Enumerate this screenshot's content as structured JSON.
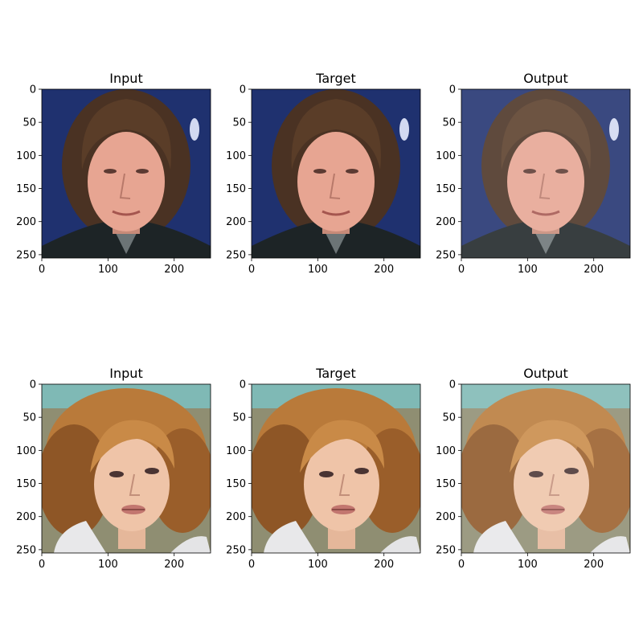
{
  "figure": {
    "panels": [
      {
        "title": "Input",
        "image": "face-portrait-man-brown-hair-dark-blue-background"
      },
      {
        "title": "Target",
        "image": "face-portrait-man-brown-hair-dark-blue-background"
      },
      {
        "title": "Output",
        "image": "face-portrait-man-brown-hair-dark-blue-background-reconstruction"
      },
      {
        "title": "Input",
        "image": "face-portrait-woman-blonde-hair-teal-background"
      },
      {
        "title": "Target",
        "image": "face-portrait-woman-blonde-hair-teal-background"
      },
      {
        "title": "Output",
        "image": "face-portrait-woman-blonde-hair-reconstruction"
      }
    ],
    "x_ticks": [
      "0",
      "100",
      "200"
    ],
    "y_ticks": [
      "0",
      "50",
      "100",
      "150",
      "200",
      "250"
    ]
  }
}
